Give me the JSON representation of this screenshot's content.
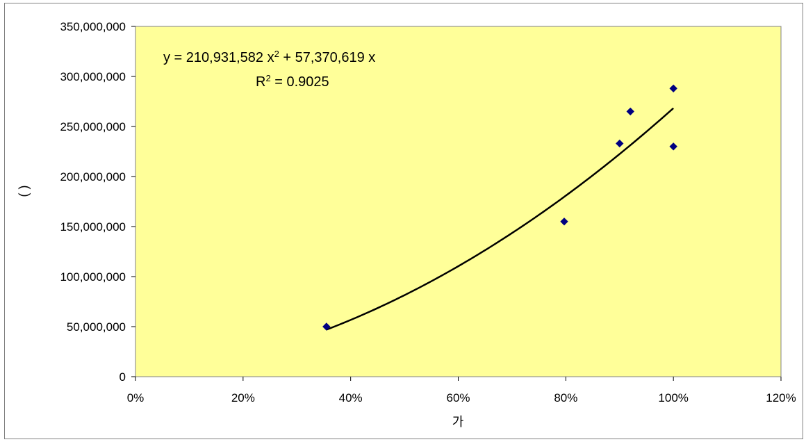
{
  "chart_data": {
    "type": "scatter",
    "title": "",
    "xlabel": "가",
    "ylabel": "( )",
    "xlim": [
      0,
      1.2
    ],
    "ylim": [
      0,
      350000000
    ],
    "x_ticks": [
      0,
      0.2,
      0.4,
      0.6,
      0.8,
      1.0,
      1.2
    ],
    "x_tick_labels": [
      "0%",
      "20%",
      "40%",
      "60%",
      "80%",
      "100%",
      "120%"
    ],
    "y_ticks": [
      0,
      50000000,
      100000000,
      150000000,
      200000000,
      250000000,
      300000000,
      350000000
    ],
    "y_tick_labels": [
      "0",
      "50,000,000",
      "100,000,000",
      "150,000,000",
      "200,000,000",
      "250,000,000",
      "300,000,000",
      "350,000,000"
    ],
    "grid": false,
    "legend": false,
    "series": [
      {
        "x": [
          0.355,
          0.797,
          0.9,
          0.92,
          1.0,
          1.0
        ],
        "y": [
          50000000,
          155000000,
          233000000,
          265000000,
          288000000,
          230000000
        ],
        "marker": "diamond",
        "color": "#000080"
      }
    ],
    "trendline": {
      "type": "polynomial",
      "order": 2,
      "coefficients": {
        "a": 210931582,
        "b": 57370619,
        "c": 0
      },
      "x_range": [
        0.355,
        1.0
      ],
      "color": "#000000",
      "equation_text": {
        "prefix": "y = 210,931,582 x",
        "exp1": "2",
        "suffix": " + 57,370,619 x"
      },
      "r2_text": {
        "prefix": "R",
        "exp": "2",
        "suffix": " = 0.9025"
      }
    },
    "plot_background": "#ffff99"
  }
}
